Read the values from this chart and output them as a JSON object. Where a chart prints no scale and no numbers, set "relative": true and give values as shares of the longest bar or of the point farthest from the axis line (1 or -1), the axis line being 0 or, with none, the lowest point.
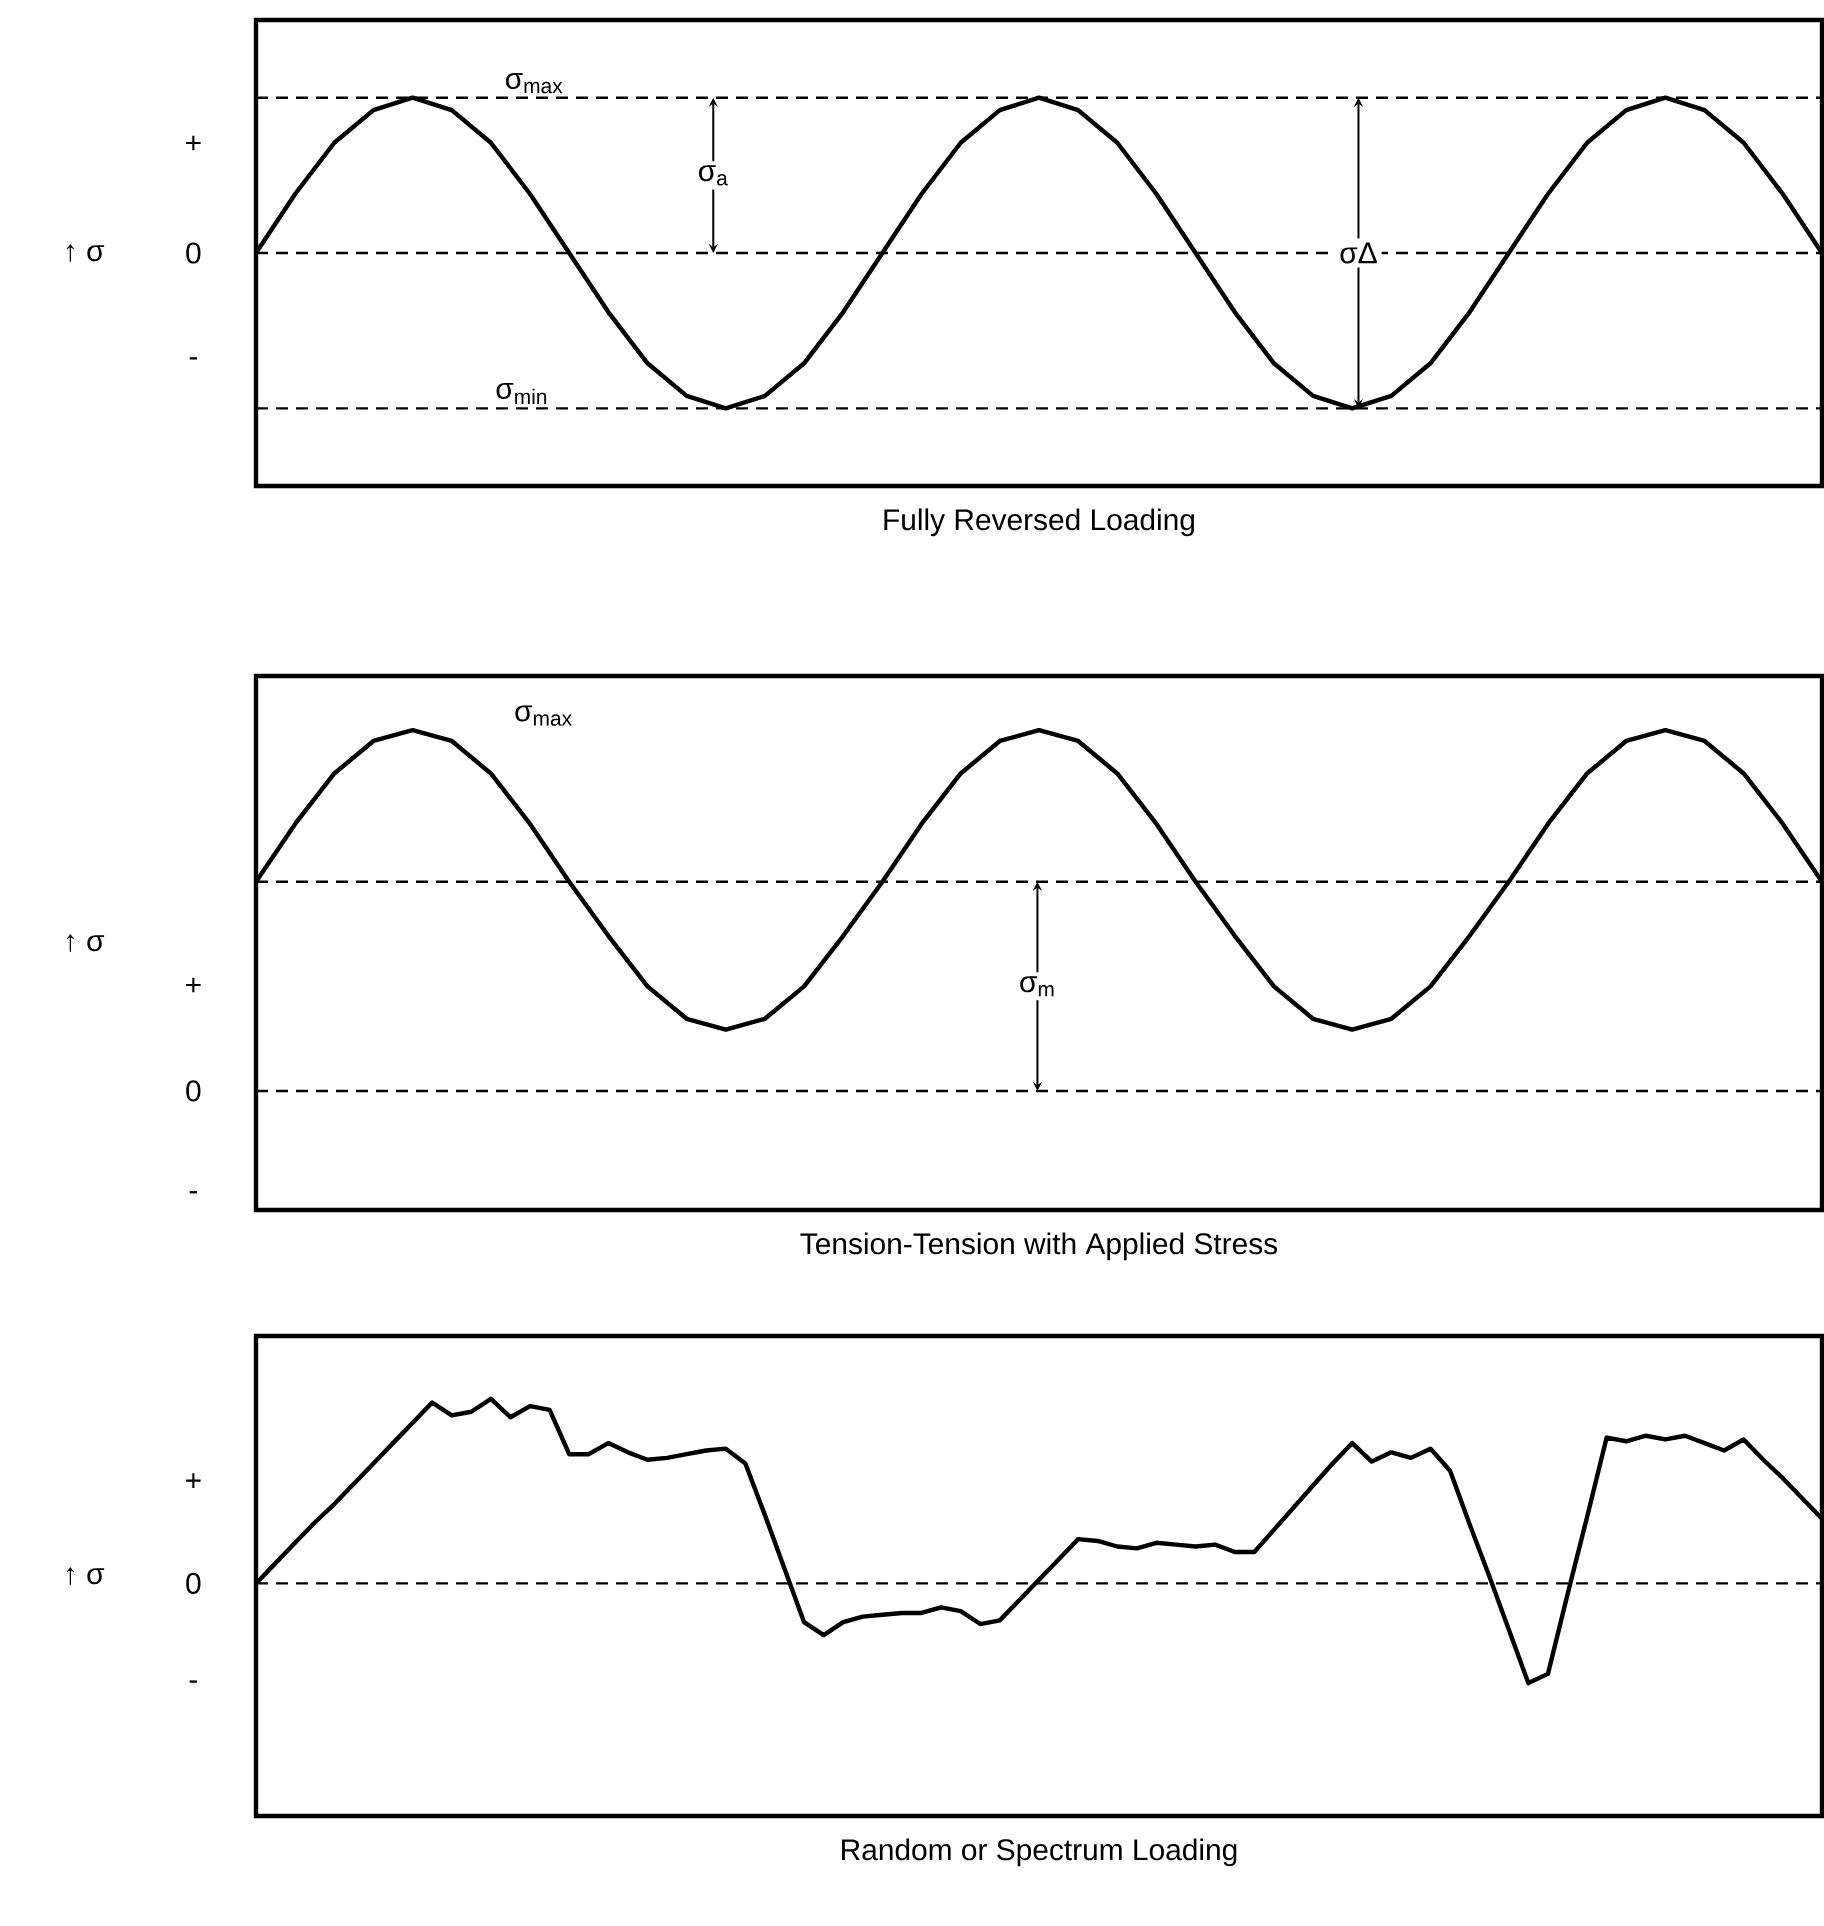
{
  "chart_data": [
    {
      "type": "line",
      "relative": true,
      "xlabel": "Fully Reversed Loading",
      "ylabel": "↑ σ",
      "marker": "none",
      "line_style": "solid",
      "color": "#000000",
      "categories": [
        null,
        null,
        null,
        null,
        null,
        null,
        null,
        null,
        null,
        null,
        null,
        null,
        null,
        null,
        null,
        null,
        null,
        null,
        null,
        null,
        null,
        null,
        null,
        null,
        null,
        null,
        null,
        null,
        null,
        null,
        null,
        null,
        null,
        null,
        null,
        null,
        null,
        null,
        null,
        null,
        null
      ],
      "values": [
        0,
        0.38,
        0.71,
        0.92,
        1,
        0.92,
        0.71,
        0.38,
        0,
        -0.38,
        -0.71,
        -0.92,
        -1,
        -0.92,
        -0.71,
        -0.38,
        0,
        0.38,
        0.71,
        0.92,
        1,
        0.92,
        0.71,
        0.38,
        0,
        -0.38,
        -0.71,
        -0.92,
        -1,
        -0.92,
        -0.71,
        -0.38,
        0,
        0.38,
        0.71,
        0.92,
        1,
        0.92,
        0.71,
        0.38,
        0
      ],
      "ref_lines": [
        {
          "axis": "y",
          "value": 1,
          "line_style": "dashed"
        },
        {
          "axis": "y",
          "value": 0,
          "line_style": "dashed"
        },
        {
          "axis": "y",
          "value": -1,
          "line_style": "dashed"
        }
      ],
      "annotations": [
        "+",
        "0",
        "-",
        {
          "text": "σ$_{max}$",
          "y": 1
        },
        {
          "text": "σ$_{a}$",
          "y": 0.5
        },
        {
          "text": "σΔ",
          "y": 0
        },
        {
          "text": "σ$_{min}$",
          "y": -1
        }
      ]
    },
    {
      "type": "line",
      "relative": true,
      "xlabel": "Tension-Tension with Applied Stress",
      "ylabel": "↑ σ",
      "marker": "none",
      "line_style": "solid",
      "color": "#000000",
      "categories": [
        null,
        null,
        null,
        null,
        null,
        null,
        null,
        null,
        null,
        null,
        null,
        null,
        null,
        null,
        null,
        null,
        null,
        null,
        null,
        null,
        null,
        null,
        null,
        null,
        null,
        null,
        null,
        null,
        null,
        null,
        null,
        null,
        null,
        null,
        null,
        null,
        null,
        null,
        null,
        null,
        null
      ],
      "values": [
        0.58,
        0.74,
        0.88,
        0.97,
        1,
        0.97,
        0.88,
        0.74,
        0.58,
        0.43,
        0.29,
        0.2,
        0.17,
        0.2,
        0.29,
        0.43,
        0.58,
        0.74,
        0.88,
        0.97,
        1,
        0.97,
        0.88,
        0.74,
        0.58,
        0.43,
        0.29,
        0.2,
        0.17,
        0.2,
        0.29,
        0.43,
        0.58,
        0.74,
        0.88,
        0.97,
        1,
        0.97,
        0.88,
        0.74,
        0.58
      ],
      "ref_lines": [
        {
          "axis": "y",
          "value": 0.58,
          "line_style": "dashed"
        },
        {
          "axis": "y",
          "value": 0,
          "line_style": "dashed"
        }
      ],
      "annotations": [
        "+",
        "0",
        "-",
        "σ$_{max}$",
        {
          "text": "σ$_{m}$",
          "y": 0.29
        }
      ]
    },
    {
      "type": "line",
      "relative": true,
      "xlabel": "Random or Spectrum Loading",
      "ylabel": "↑ σ",
      "marker": "none",
      "line_style": "solid",
      "color": "#000000",
      "categories": [
        null,
        null,
        null,
        null,
        null,
        null,
        null,
        null,
        null,
        null,
        null,
        null,
        null,
        null,
        null,
        null,
        null,
        null,
        null,
        null,
        null,
        null,
        null,
        null,
        null,
        null,
        null,
        null,
        null,
        null,
        null,
        null,
        null,
        null,
        null,
        null,
        null,
        null,
        null,
        null,
        null,
        null,
        null,
        null,
        null,
        null,
        null,
        null,
        null,
        null,
        null,
        null,
        null,
        null,
        null,
        null,
        null,
        null,
        null,
        null,
        null,
        null,
        null,
        null,
        null,
        null,
        null,
        null,
        null,
        null,
        null,
        null,
        null,
        null,
        null,
        null,
        null,
        null,
        null,
        null,
        null
      ],
      "values": [
        0,
        0.11,
        0.22,
        0.33,
        0.43,
        0.54,
        0.65,
        0.76,
        0.87,
        0.98,
        0.91,
        0.93,
        1,
        0.9,
        0.96,
        0.94,
        0.7,
        0.7,
        0.76,
        0.71,
        0.67,
        0.68,
        0.7,
        0.72,
        0.73,
        0.65,
        0.37,
        0.08,
        -0.21,
        -0.28,
        -0.21,
        -0.18,
        -0.17,
        -0.16,
        -0.16,
        -0.13,
        -0.15,
        -0.22,
        -0.2,
        -0.09,
        0.02,
        0.13,
        0.24,
        0.23,
        0.2,
        0.19,
        0.22,
        0.21,
        0.2,
        0.21,
        0.17,
        0.17,
        0.29,
        0.41,
        0.53,
        0.65,
        0.76,
        0.66,
        0.71,
        0.68,
        0.73,
        0.61,
        0.32,
        0.04,
        -0.25,
        -0.54,
        -0.49,
        -0.06,
        0.36,
        0.79,
        0.77,
        0.8,
        0.78,
        0.8,
        0.76,
        0.72,
        0.78,
        0.67,
        0.57,
        0.46,
        0.35
      ],
      "ref_lines": [
        {
          "axis": "y",
          "value": 0,
          "line_style": "dashed"
        }
      ],
      "annotations": [
        "+",
        "0",
        "-"
      ]
    }
  ]
}
